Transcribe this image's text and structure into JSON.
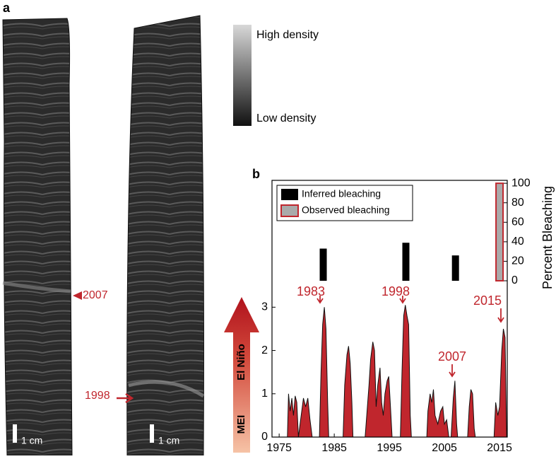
{
  "figure": {
    "panel_labels": [
      "a",
      "b"
    ],
    "colorbar": {
      "high": "High density",
      "low": "Low density"
    },
    "core_labels": [
      "2007",
      "1998"
    ],
    "scale_bar": "1 cm"
  },
  "chart_data": [
    {
      "type": "bar",
      "x": [
        1983,
        1998,
        2007,
        2015
      ],
      "xlim": [
        1973.7,
        2016.4
      ],
      "series": [
        {
          "name": "Inferred bleaching",
          "color": "#000000",
          "values": [
            33,
            39,
            26,
            null
          ]
        },
        {
          "name": "Observed bleaching",
          "color": "#aaaaaa",
          "edgecolor": "#c0262d",
          "values": [
            null,
            null,
            null,
            100
          ]
        }
      ],
      "ylabel": "Percent Bleaching",
      "ylim": [
        0,
        103
      ],
      "yticks": [
        0,
        20,
        40,
        60,
        80,
        100
      ],
      "legend": "upper left"
    },
    {
      "type": "area",
      "color": "#c0262d",
      "xlabel_parts": [
        "MEI",
        "El Niño"
      ],
      "x": [
        1975,
        1976.5,
        1976.7,
        1977.0,
        1977.3,
        1977.6,
        1977.9,
        1978.2,
        1978.5,
        1979.0,
        1979.4,
        1979.8,
        1980.2,
        1980.6,
        1981.0,
        1982.3,
        1982.6,
        1982.9,
        1983.2,
        1983.5,
        1983.8,
        1984.0,
        1986.6,
        1986.9,
        1987.3,
        1987.6,
        1987.9,
        1988.2,
        1988.4,
        1990.6,
        1990.9,
        1991.3,
        1991.6,
        1992.0,
        1992.3,
        1992.6,
        1992.9,
        1993.3,
        1993.6,
        1993.9,
        1994.2,
        1994.6,
        1994.9,
        1995.2,
        1995.5,
        1997.0,
        1997.3,
        1997.6,
        1997.9,
        1998.2,
        1998.5,
        1998.8,
        1999.0,
        2001.8,
        2002.0,
        2002.4,
        2002.7,
        2003.0,
        2003.3,
        2003.8,
        2004.3,
        2004.7,
        2005.0,
        2005.4,
        2005.8,
        2006.2,
        2006.6,
        2006.9,
        2007.2,
        2007.4,
        2009.2,
        2009.5,
        2009.8,
        2010.1,
        2010.4,
        2010.6,
        2014.0,
        2014.3,
        2014.7,
        2015.0,
        2015.4,
        2015.7,
        2016.0,
        2016.3
      ],
      "values": [
        0,
        0,
        1.0,
        0.6,
        0.9,
        0.5,
        0.95,
        0.8,
        0,
        0.5,
        0.9,
        0.7,
        0.9,
        0.4,
        0,
        0,
        1.5,
        2.6,
        3.0,
        2.5,
        0.8,
        0,
        0,
        1.2,
        1.9,
        2.1,
        1.7,
        0.8,
        0,
        0,
        0.5,
        1.2,
        1.8,
        2.2,
        2.0,
        0.7,
        1.2,
        1.6,
        0.8,
        0.5,
        1.0,
        1.3,
        1.4,
        0.7,
        0,
        0,
        1.5,
        2.8,
        3.05,
        2.8,
        2.6,
        0.5,
        0,
        0,
        0.6,
        1.0,
        0.8,
        1.1,
        0.5,
        0.3,
        0.6,
        0.7,
        0.3,
        0.4,
        0,
        0,
        0.9,
        1.3,
        0.3,
        0,
        0,
        0.7,
        1.1,
        1.0,
        0.2,
        0,
        0,
        0.8,
        0.5,
        0.7,
        2.0,
        2.5,
        2.3,
        0
      ],
      "xlim": [
        1973.7,
        2016.4
      ],
      "xticks": [
        1975,
        1985,
        1995,
        2005,
        2015
      ],
      "ylim": [
        0,
        3.61
      ],
      "yticks": [
        0,
        1,
        2,
        3
      ],
      "annotations": [
        "1983",
        "1998",
        "2007",
        "2015"
      ]
    }
  ]
}
